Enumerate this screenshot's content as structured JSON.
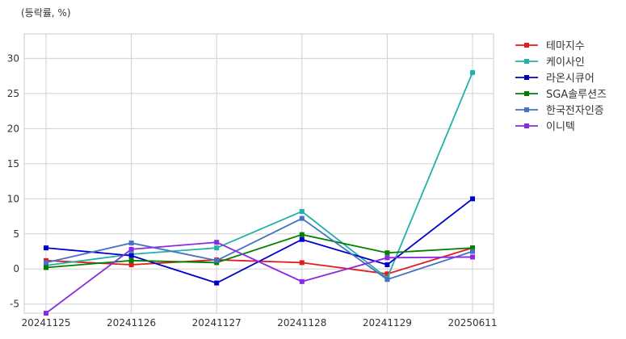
{
  "chart_data": {
    "type": "line",
    "unit_label": "(등락률, %)",
    "categories": [
      "20241125",
      "20241126",
      "20241127",
      "20241128",
      "20241129",
      "20250611"
    ],
    "ylim": [
      -6.3,
      33.5
    ],
    "yticks": [
      -5,
      0,
      5,
      10,
      15,
      20,
      25,
      30
    ],
    "grid": true,
    "legend_position": "right",
    "series": [
      {
        "name": "테마지수",
        "color": "#e41a1c",
        "values": [
          1.2,
          0.6,
          1.3,
          0.9,
          -0.7,
          3.0
        ]
      },
      {
        "name": "케이사인",
        "color": "#20b2aa",
        "values": [
          0.5,
          2.1,
          3.0,
          8.2,
          -1.3,
          28.0
        ]
      },
      {
        "name": "라온시큐어",
        "color": "#0000cd",
        "values": [
          3.0,
          1.9,
          -2.0,
          4.2,
          0.6,
          10.0
        ]
      },
      {
        "name": "SGA솔루션즈",
        "color": "#008000",
        "values": [
          0.2,
          1.2,
          0.9,
          4.9,
          2.3,
          3.0
        ]
      },
      {
        "name": "한국전자인증",
        "color": "#4472c4",
        "values": [
          0.9,
          3.7,
          1.2,
          7.2,
          -1.5,
          2.5
        ]
      },
      {
        "name": "이니텍",
        "color": "#8a2be2",
        "values": [
          -6.3,
          2.8,
          3.8,
          -1.8,
          1.6,
          1.7
        ]
      }
    ]
  }
}
